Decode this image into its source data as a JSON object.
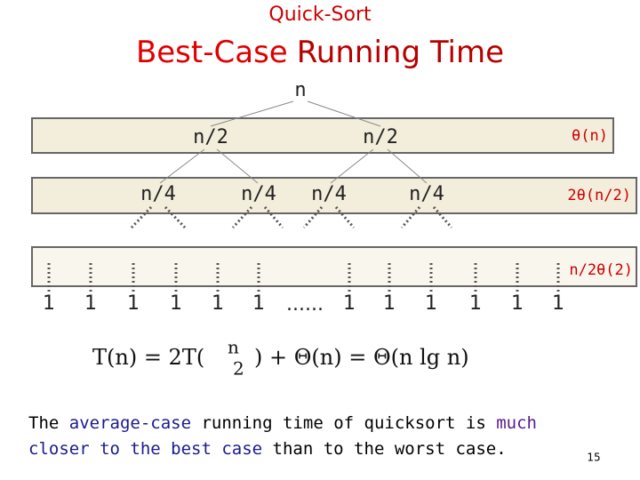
{
  "header": {
    "subtitle": "Quick-Sort",
    "title_part1": "Best-Case",
    "title_part2": "Running Time"
  },
  "tree": {
    "root": "n",
    "level1": [
      "n/2",
      "n/2"
    ],
    "level2": [
      "n/4",
      "n/4",
      "n/4",
      "n/4"
    ],
    "leaves_left": [
      "1",
      "1",
      "1",
      "1",
      "1",
      "1"
    ],
    "ellipsis": "......",
    "leaves_right": [
      "1",
      "1",
      "1",
      "1",
      "1",
      "1"
    ]
  },
  "row_costs": [
    "θ(n)",
    "2θ(n/2)",
    "n/2θ(2)"
  ],
  "formula": {
    "left": "T(n) = 2T(",
    "numerator": "n",
    "denominator": "2",
    "right": ") + Θ(n) = Θ(n lg n)"
  },
  "paragraph": [
    "The ",
    "average-case",
    " running time of quicksort is ",
    "much",
    " closer to the best case",
    " than to the worst case."
  ],
  "page_number": "15"
}
